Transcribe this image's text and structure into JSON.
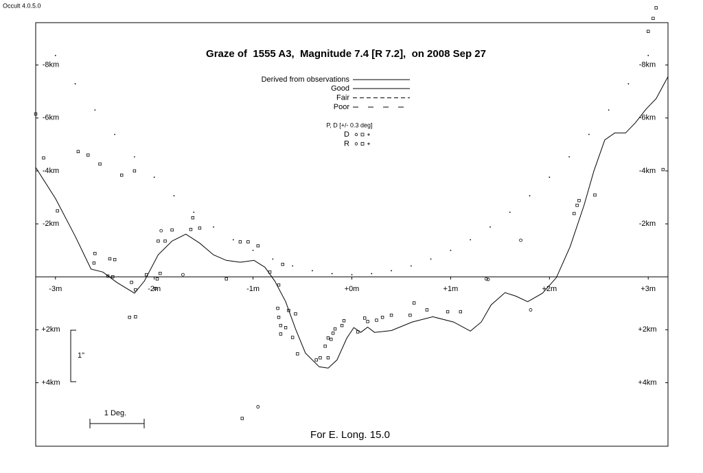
{
  "app_label": "Occult 4.0.5.0",
  "chart_data": {
    "type": "graze",
    "title": "Graze of  1555 A3,  Magnitude 7.4 [R 7.2],  on 2008 Sep 27",
    "footer": "For E. Long. 15.0",
    "xlim": [
      -3.2,
      3.2
    ],
    "ylim": [
      -9.6,
      6.4
    ],
    "y_inverted": true,
    "xticks": [
      {
        "value": -3,
        "label": "-3m"
      },
      {
        "value": -2,
        "label": "-2m"
      },
      {
        "value": -1,
        "label": "-1m"
      },
      {
        "value": 0,
        "label": "+0m"
      },
      {
        "value": 1,
        "label": "+1m"
      },
      {
        "value": 2,
        "label": "+2m"
      },
      {
        "value": 3,
        "label": "+3m"
      }
    ],
    "yticks": [
      {
        "value": -8,
        "label": "-8km"
      },
      {
        "value": -6,
        "label": "-6km"
      },
      {
        "value": -4,
        "label": "-4km"
      },
      {
        "value": -2,
        "label": "-2km"
      },
      {
        "value": 2,
        "label": "+2km"
      },
      {
        "value": 4,
        "label": "+4km"
      }
    ],
    "legend": {
      "lines": [
        {
          "label": "Good",
          "dash": "solid"
        },
        {
          "label": "Fair",
          "dash": "dashed"
        },
        {
          "label": "Poor",
          "dash": "long-dash"
        }
      ],
      "symbols_title": "P, D [+/- 0.3 deg]",
      "symbols": [
        "D",
        "R"
      ]
    },
    "scale_labels": {
      "vertical": "1\"",
      "horizontal": "1 Deg."
    },
    "series": [
      {
        "name": "Derived from observations",
        "color": "#000000",
        "x": [
          -3.2,
          -3.0,
          -2.8,
          -2.64,
          -2.52,
          -2.38,
          -2.2,
          -2.1,
          -1.96,
          -1.82,
          -1.68,
          -1.54,
          -1.4,
          -1.27,
          -1.13,
          -0.99,
          -0.88,
          -0.78,
          -0.67,
          -0.57,
          -0.47,
          -0.33,
          -0.24,
          -0.15,
          -0.05,
          0.02,
          0.09,
          0.16,
          0.23,
          0.4,
          0.61,
          0.82,
          1.03,
          1.2,
          1.31,
          1.41,
          1.55,
          1.66,
          1.78,
          1.93,
          2.07,
          2.21,
          2.35,
          2.45,
          2.56,
          2.66,
          2.77,
          2.87,
          2.98,
          3.08,
          3.2
        ],
        "values": [
          -4.13,
          -2.96,
          -1.53,
          -0.29,
          -0.18,
          0.21,
          0.62,
          0.16,
          -0.83,
          -1.35,
          -1.61,
          -1.27,
          -0.83,
          -0.62,
          -0.55,
          -0.62,
          -0.36,
          0.16,
          0.94,
          1.97,
          2.88,
          3.4,
          3.45,
          3.14,
          2.31,
          1.92,
          2.1,
          1.9,
          2.1,
          2.03,
          1.71,
          1.51,
          1.71,
          2.05,
          1.71,
          1.06,
          0.6,
          0.73,
          0.94,
          0.62,
          0.03,
          -1.14,
          -2.7,
          -4.0,
          -5.17,
          -5.43,
          -5.43,
          -5.82,
          -6.34,
          -6.73,
          -7.56
        ]
      }
    ],
    "limit": {
      "color": "#000000",
      "x": [
        -3.0,
        -2.8,
        -2.6,
        -2.4,
        -2.2,
        -2.0,
        -1.8,
        -1.6,
        -1.4,
        -1.2,
        -1.0,
        -0.8,
        -0.6,
        -0.4,
        -0.2,
        0,
        0.2,
        0.4,
        0.6,
        0.8,
        1.0,
        1.2,
        1.4,
        1.6,
        1.8,
        2.0,
        2.2,
        2.4,
        2.6,
        2.8,
        3.0
      ],
      "values": [
        -8.36,
        -7.29,
        -6.3,
        -5.38,
        -4.53,
        -3.76,
        -3.06,
        -2.44,
        -1.88,
        -1.4,
        -1.0,
        -0.67,
        -0.41,
        -0.23,
        -0.12,
        -0.08,
        -0.12,
        -0.23,
        -0.41,
        -0.67,
        -1.0,
        -1.4,
        -1.88,
        -2.44,
        -3.06,
        -3.76,
        -4.53,
        -5.38,
        -6.3,
        -7.29,
        -8.36
      ]
    },
    "observations": {
      "color": "#000000",
      "x": [
        -3.2,
        -3.12,
        -2.98,
        -2.77,
        -2.67,
        -2.55,
        -2.33,
        -2.2,
        -2.6,
        -2.61,
        -2.45,
        -2.4,
        -2.47,
        -2.42,
        -2.23,
        -2.19,
        -2.25,
        -2.19,
        -2.08,
        -1.99,
        -1.97,
        -1.94,
        -1.96,
        -1.89,
        -1.93,
        -1.82,
        -1.71,
        -1.63,
        -1.61,
        -1.54,
        -1.27,
        -1.13,
        -1.05,
        -0.95,
        -0.83,
        -0.74,
        -0.75,
        -0.74,
        -0.72,
        -0.72,
        -0.67,
        -0.64,
        -0.6,
        -0.57,
        -0.55,
        -0.7,
        -0.36,
        -0.32,
        -0.27,
        -0.24,
        -0.21,
        -0.19,
        -0.17,
        -0.24,
        -0.1,
        -0.08,
        0.06,
        0.13,
        0.16,
        0.25,
        0.31,
        0.4,
        0.59,
        0.63,
        0.76,
        0.97,
        1.1,
        1.36,
        1.38,
        1.71,
        1.81,
        2.25,
        2.28,
        2.3,
        2.46,
        3.0,
        3.05,
        3.08,
        3.15,
        -1.11,
        -0.95
      ],
      "values": [
        -6.15,
        -4.49,
        -2.49,
        -4.73,
        -4.6,
        -4.26,
        -3.84,
        -4.0,
        -0.88,
        -0.52,
        -0.68,
        -0.65,
        -0.03,
        0,
        0.21,
        0.49,
        1.53,
        1.51,
        -0.08,
        0.44,
        0.08,
        -0.13,
        -1.35,
        -1.35,
        -1.74,
        -1.77,
        -0.08,
        -1.79,
        -2.23,
        -1.84,
        0.08,
        -1.32,
        -1.32,
        -1.17,
        -0.18,
        0.31,
        1.19,
        1.53,
        1.84,
        2.16,
        1.92,
        1.27,
        2.29,
        1.4,
        2.91,
        -0.47,
        3.14,
        3.06,
        2.62,
        2.31,
        2.36,
        2.13,
        1.97,
        3.06,
        1.84,
        1.66,
        2.08,
        1.56,
        1.69,
        1.64,
        1.53,
        1.45,
        1.45,
        0.99,
        1.25,
        1.32,
        1.32,
        0.08,
        0.1,
        -1.38,
        1.25,
        -2.39,
        -2.7,
        -2.88,
        -3.09,
        -9.27,
        -9.76,
        -10.16,
        -4.05,
        5.35,
        4.91
      ],
      "markers": [
        "s",
        "s",
        "s",
        "s",
        "s",
        "s",
        "s",
        "s",
        "s",
        "s",
        "s",
        "s",
        "s",
        "s",
        "s",
        "s",
        "s",
        "s",
        "s",
        "s",
        "s",
        "s",
        "s",
        "s",
        "o",
        "s",
        "o",
        "s",
        "s",
        "s",
        "s",
        "s",
        "s",
        "s",
        "s",
        "s",
        "s",
        "s",
        "s",
        "s",
        "s",
        "s",
        "s",
        "s",
        "s",
        "s",
        "s",
        "s",
        "s",
        "s",
        "s",
        "s",
        "s",
        "s",
        "s",
        "s",
        "s",
        "s",
        "s",
        "s",
        "s",
        "s",
        "s",
        "s",
        "s",
        "s",
        "s",
        "o",
        "o",
        "o",
        "o",
        "s",
        "s",
        "s",
        "s",
        "s",
        "s",
        "s",
        "s",
        "s",
        "o"
      ]
    }
  }
}
